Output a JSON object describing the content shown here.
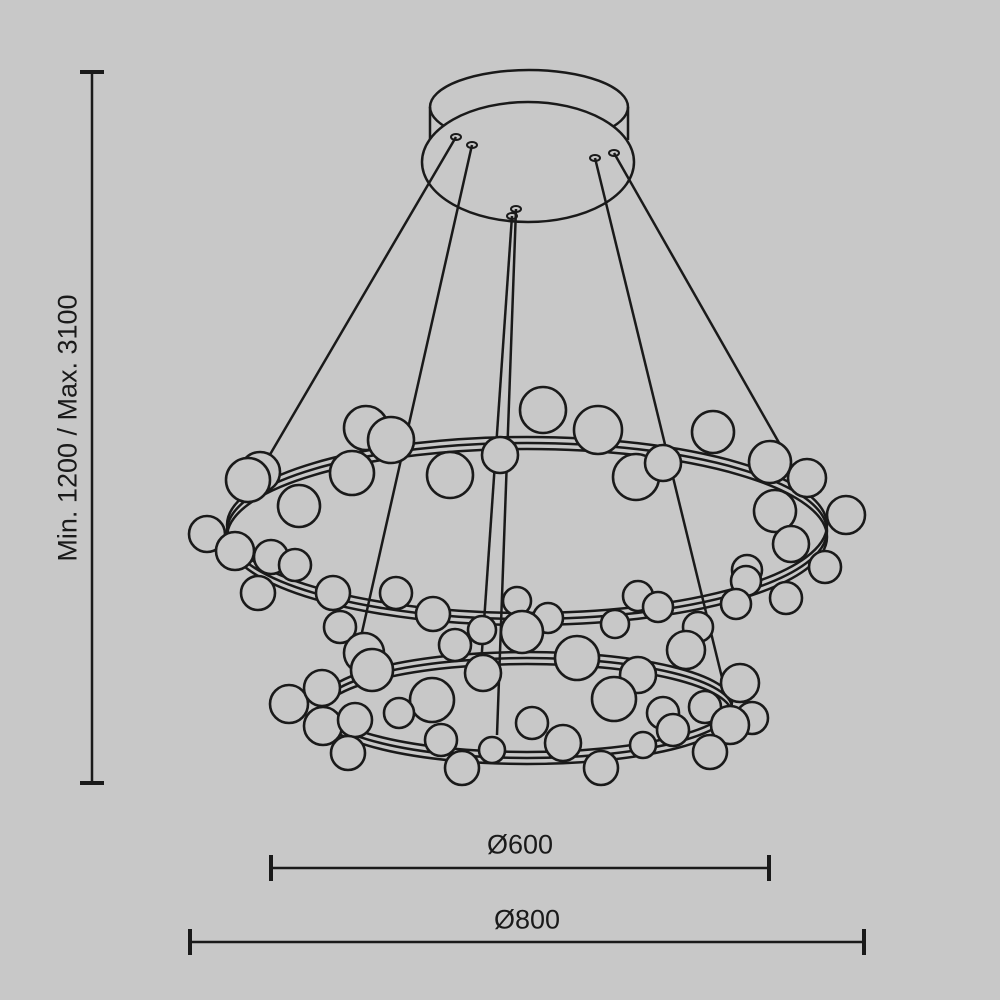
{
  "dimensions": {
    "height_label": "Min. 1200 / Max. 3100",
    "inner_diameter_label": "Ø600",
    "outer_diameter_label": "Ø800"
  },
  "colors": {
    "background": "#c8c8c8",
    "line": "#1a1a1a"
  }
}
